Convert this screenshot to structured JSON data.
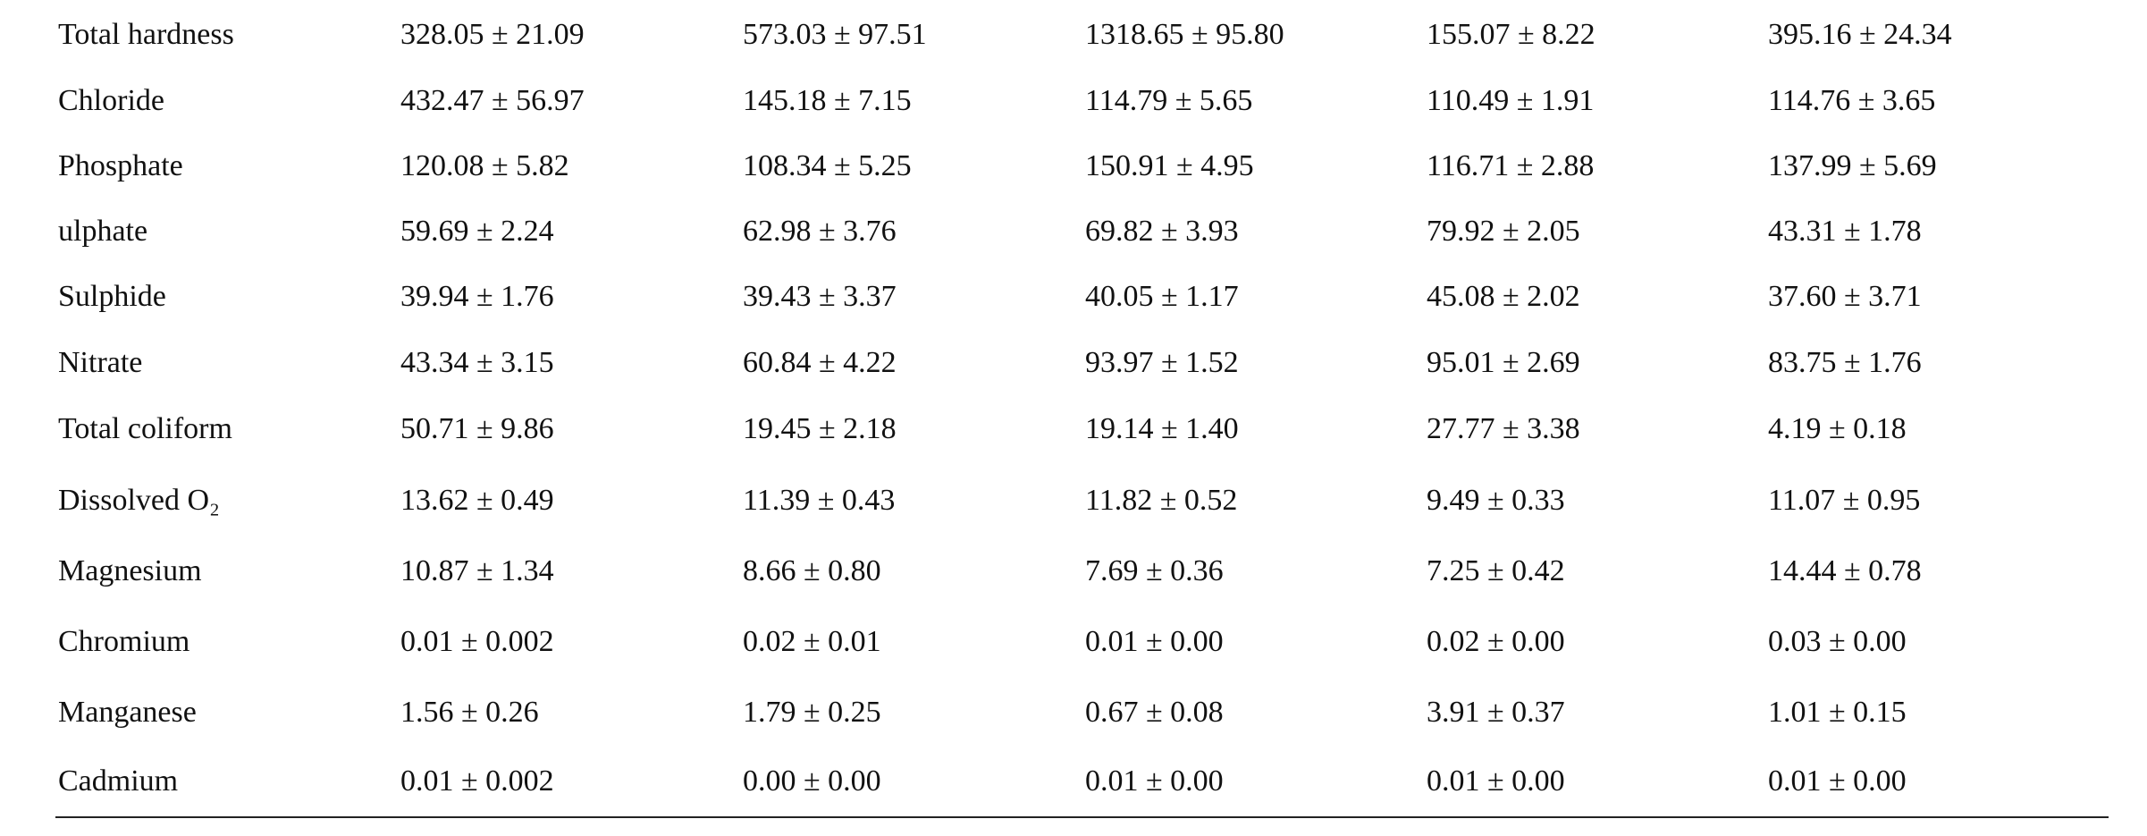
{
  "table": {
    "rows": [
      [
        "Total hardness",
        "328.05 ± 21.09",
        "573.03 ± 97.51",
        "1318.65 ± 95.80",
        "155.07 ± 8.22",
        "395.16 ± 24.34"
      ],
      [
        "Chloride",
        "432.47 ± 56.97",
        "145.18 ± 7.15",
        "114.79 ± 5.65",
        "110.49 ± 1.91",
        "114.76 ± 3.65"
      ],
      [
        "Phosphate",
        "120.08 ± 5.82",
        "108.34 ± 5.25",
        "150.91 ± 4.95",
        "116.71 ± 2.88",
        "137.99 ± 5.69"
      ],
      [
        "ulphate",
        "59.69 ± 2.24",
        "62.98 ± 3.76",
        "69.82 ± 3.93",
        "79.92 ± 2.05",
        "43.31 ± 1.78"
      ],
      [
        "Sulphide",
        "39.94 ± 1.76",
        "39.43 ± 3.37",
        "40.05 ± 1.17",
        "45.08 ± 2.02",
        "37.60 ± 3.71"
      ],
      [
        "Nitrate",
        "43.34 ± 3.15",
        "60.84 ± 4.22",
        "93.97 ± 1.52",
        "95.01 ± 2.69",
        "83.75 ± 1.76"
      ],
      [
        "Total coliform",
        "50.71 ± 9.86",
        "19.45 ± 2.18",
        "19.14 ± 1.40",
        "27.77 ± 3.38",
        "4.19 ± 0.18"
      ],
      [
        "Dissolved O₂",
        "13.62 ± 0.49",
        "11.39 ± 0.43",
        "11.82 ± 0.52",
        "9.49 ± 0.33",
        "11.07 ± 0.95"
      ],
      [
        "Magnesium",
        "10.87 ± 1.34",
        "8.66 ± 0.80",
        "7.69 ± 0.36",
        "7.25 ± 0.42",
        "14.44 ± 0.78"
      ],
      [
        "Chromium",
        "0.01 ± 0.002",
        "0.02 ± 0.01",
        "0.01 ± 0.00",
        "0.02 ± 0.00",
        "0.03 ± 0.00"
      ],
      [
        "Manganese",
        "1.56 ± 0.26",
        "1.79 ± 0.25",
        "0.67 ± 0.08",
        "3.91 ± 0.37",
        "1.01 ± 0.15"
      ],
      [
        "Cadmium",
        "0.01 ± 0.002",
        "0.00 ± 0.00",
        "0.01 ± 0.00",
        "0.01 ± 0.00",
        "0.01 ± 0.00"
      ]
    ]
  }
}
